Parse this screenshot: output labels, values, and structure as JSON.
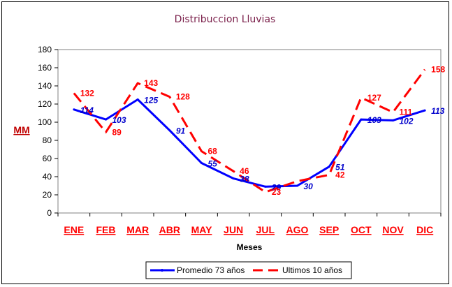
{
  "chart_data": {
    "type": "line",
    "title": "Distribuccion Lluvias",
    "xlabel": "Meses",
    "ylabel": "MM",
    "categories": [
      "ENE",
      "FEB",
      "MAR",
      "ABR",
      "MAY",
      "JUN",
      "JUL",
      "AGO",
      "SEP",
      "OCT",
      "NOV",
      "DIC"
    ],
    "ylim": [
      0,
      180
    ],
    "yticks": [
      "0",
      "20",
      "40",
      "60",
      "80",
      "100",
      "120",
      "140",
      "160",
      "180"
    ],
    "grid": false,
    "legend_position": "bottom",
    "series": [
      {
        "name": "Promedio 73 años",
        "color": "#0000ff",
        "style": "solid",
        "values": [
          114,
          103,
          125,
          91,
          55,
          38,
          29,
          30,
          51,
          103,
          102,
          113
        ],
        "labels": [
          "114",
          "103",
          "125",
          "91",
          "55",
          "38",
          "29",
          "30",
          "51",
          "103",
          "102",
          "113"
        ]
      },
      {
        "name": "Ultimos 10 años",
        "color": "#ff0000",
        "style": "dashed",
        "values": [
          132,
          89,
          143,
          128,
          68,
          46,
          23,
          35,
          42,
          127,
          111,
          158
        ],
        "labels": [
          "132",
          "89",
          "143",
          "128",
          "68",
          "46",
          "23",
          "",
          "42",
          "127",
          "111",
          "158"
        ]
      }
    ]
  }
}
